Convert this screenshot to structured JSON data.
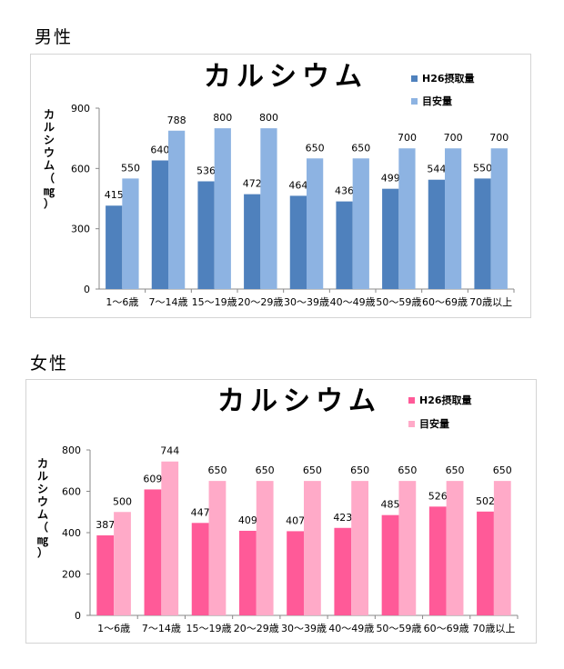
{
  "sections": [
    {
      "title": "男性"
    },
    {
      "title": "女性"
    }
  ],
  "chart_data": [
    {
      "type": "bar",
      "title": "カルシウム",
      "ylabel": "カルシウム（㎎）",
      "ylim": [
        0,
        900
      ],
      "yticks": [
        0,
        300,
        600,
        900
      ],
      "grid": false,
      "legend_position": "top-right",
      "categories": [
        "1～6歳",
        "7～14歳",
        "15～19歳",
        "20～29歳",
        "30～39歳",
        "40～49歳",
        "50～59歳",
        "60～69歳",
        "70歳以上"
      ],
      "series": [
        {
          "name": "H26摂取量",
          "color": "#4f81bd",
          "values": [
            415,
            640,
            536,
            472,
            464,
            436,
            499,
            544,
            550
          ]
        },
        {
          "name": "目安量",
          "color": "#8db3e2",
          "values": [
            550,
            788,
            800,
            800,
            650,
            650,
            700,
            700,
            700
          ]
        }
      ]
    },
    {
      "type": "bar",
      "title": "カルシウム",
      "ylabel": "カルシウム（㎎）",
      "ylim": [
        0,
        800
      ],
      "yticks": [
        0,
        200,
        400,
        600,
        800
      ],
      "grid": false,
      "legend_position": "top-right",
      "categories": [
        "1～6歳",
        "7～14歳",
        "15～19歳",
        "20～29歳",
        "30～39歳",
        "40～49歳",
        "50～59歳",
        "60～69歳",
        "70歳以上"
      ],
      "series": [
        {
          "name": "H26摂取量",
          "color": "#ff5a98",
          "values": [
            387,
            609,
            447,
            409,
            407,
            423,
            485,
            526,
            502
          ]
        },
        {
          "name": "目安量",
          "color": "#ffaac8",
          "values": [
            500,
            744,
            650,
            650,
            650,
            650,
            650,
            650,
            650
          ]
        }
      ]
    }
  ]
}
